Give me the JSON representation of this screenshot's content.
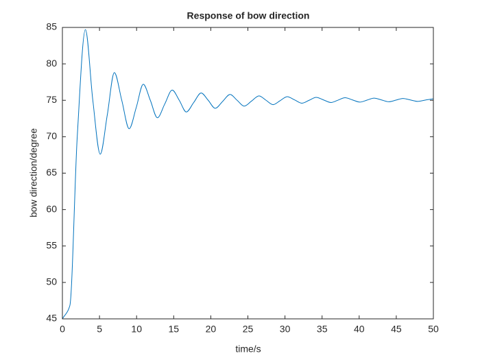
{
  "chart_data": {
    "type": "line",
    "title": "Response of bow direction",
    "x_label": "time/s",
    "y_label": "bow direction/degree",
    "x": [
      0,
      1,
      2,
      3.1,
      4.1,
      5.1,
      6.05,
      7.0,
      8.0,
      9.0,
      9.95,
      10.9,
      11.85,
      12.8,
      13.8,
      14.8,
      15.75,
      16.7,
      17.7,
      18.7,
      19.65,
      20.6,
      21.6,
      22.6,
      23.55,
      24.5,
      25.5,
      26.5,
      27.45,
      28.4,
      29.35,
      30.3,
      31.3,
      32.3,
      33.25,
      34.2,
      35.2,
      36.2,
      37.15,
      38.1,
      39.1,
      40.1,
      41.05,
      42.0,
      43.0,
      44.0,
      44.95,
      45.9,
      46.9,
      47.9,
      49.0,
      50
    ],
    "series": [
      {
        "color": "#0072bd",
        "values": [
          45,
          46.8,
          70,
          84.7,
          75,
          67.6,
          73,
          78.8,
          75,
          71.1,
          74,
          77.2,
          75,
          72.6,
          74.5,
          76.4,
          75,
          73.4,
          74.7,
          76.0,
          75,
          73.9,
          74.85,
          75.8,
          75,
          74.2,
          74.9,
          75.6,
          75,
          74.4,
          74.95,
          75.5,
          75.05,
          74.6,
          75,
          75.4,
          75.05,
          74.7,
          75.02,
          75.35,
          75.05,
          74.75,
          75.02,
          75.3,
          75.05,
          74.8,
          75.02,
          75.25,
          75.05,
          74.85,
          75.05,
          75.2
        ]
      }
    ],
    "xlim": [
      0,
      50
    ],
    "ylim": [
      45,
      85
    ],
    "xticks": [
      0,
      5,
      10,
      15,
      20,
      25,
      30,
      35,
      40,
      45,
      50
    ],
    "yticks": [
      45,
      50,
      55,
      60,
      65,
      70,
      75,
      80,
      85
    ]
  }
}
